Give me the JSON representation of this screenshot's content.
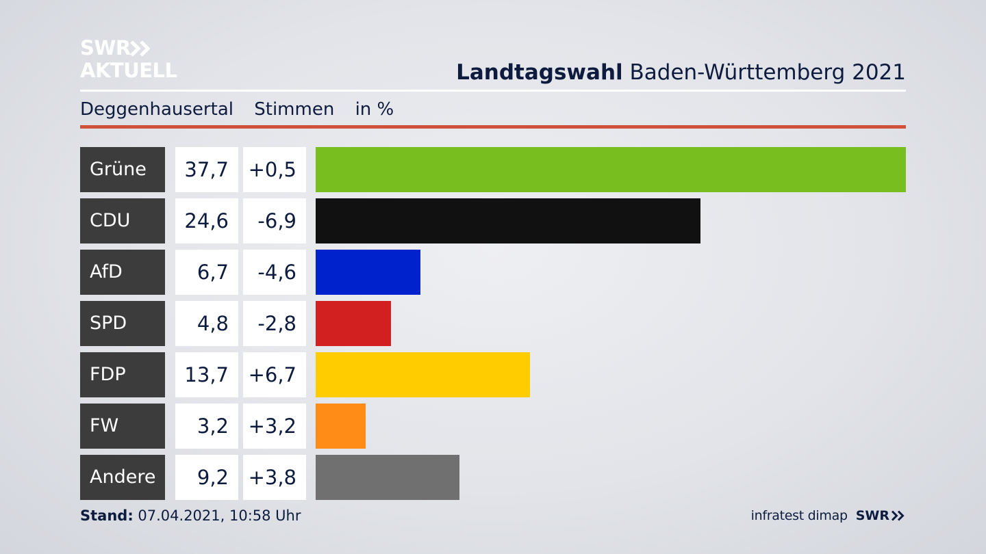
{
  "logo": {
    "line1": "SWR",
    "line2": "AKTUELL"
  },
  "header": {
    "title_bold": "Landtagswahl",
    "title_rest": " Baden-Württemberg 2021"
  },
  "subheader": {
    "district": "Deggenhausertal",
    "measure": "Stimmen",
    "unit": "in %"
  },
  "chart_data": {
    "type": "bar",
    "categories": [
      "Grüne",
      "CDU",
      "AfD",
      "SPD",
      "FDP",
      "FW",
      "Andere"
    ],
    "values": [
      37.7,
      24.6,
      6.7,
      4.8,
      13.7,
      3.2,
      9.2
    ],
    "value_labels": [
      "37,7",
      "24,6",
      "6,7",
      "4,8",
      "13,7",
      "3,2",
      "9,2"
    ],
    "change_labels": [
      "+0,5",
      "-6,9",
      "-4,6",
      "-2,8",
      "+6,7",
      "+3,2",
      "+3,8"
    ],
    "changes": [
      0.5,
      -6.9,
      -4.6,
      -2.8,
      6.7,
      3.2,
      3.8
    ],
    "colors": [
      "#78be1e",
      "#111111",
      "#0022cc",
      "#d21f1f",
      "#ffcc00",
      "#ff8c16",
      "#707070"
    ],
    "orientation": "horizontal",
    "xlim": [
      0,
      37.7
    ],
    "grid": false
  },
  "footer": {
    "stand_label": "Stand:",
    "stand_value": " 07.04.2021, 10:58 Uhr",
    "source": "infratest dimap",
    "brand": "SWR"
  }
}
